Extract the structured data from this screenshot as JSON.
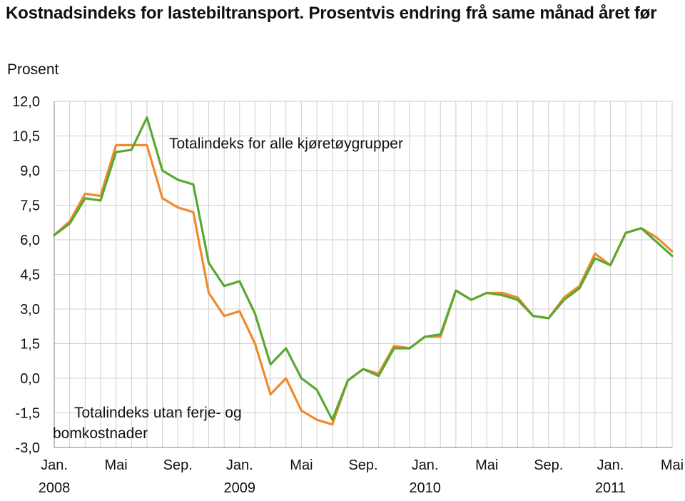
{
  "title": "Kostnadsindeks for lastebiltransport. Prosentvis endring frå same månad året før",
  "chart_data": {
    "type": "line",
    "title": "Kostnadsindeks for lastebiltransport. Prosentvis endring frå same månad året før",
    "ylabel": "Prosent",
    "xlabel": "",
    "ylim": [
      -3.0,
      12.0
    ],
    "yticks": [
      "12,0",
      "10,5",
      "9,0",
      "7,5",
      "6,0",
      "4,5",
      "3,0",
      "1,5",
      "0,0",
      "-1,5",
      "-3,0"
    ],
    "xtick_labels": [
      {
        "month": 0,
        "line1": "Jan.",
        "line2": "2008"
      },
      {
        "month": 4,
        "line1": "Mai",
        "line2": ""
      },
      {
        "month": 8,
        "line1": "Sep.",
        "line2": ""
      },
      {
        "month": 12,
        "line1": "Jan.",
        "line2": "2009"
      },
      {
        "month": 16,
        "line1": "Mai",
        "line2": ""
      },
      {
        "month": 20,
        "line1": "Sep.",
        "line2": ""
      },
      {
        "month": 24,
        "line1": "Jan.",
        "line2": "2010"
      },
      {
        "month": 28,
        "line1": "Mai",
        "line2": ""
      },
      {
        "month": 32,
        "line1": "Sep.",
        "line2": ""
      },
      {
        "month": 36,
        "line1": "Jan.",
        "line2": "2011"
      },
      {
        "month": 40,
        "line1": "Mai",
        "line2": ""
      }
    ],
    "grid": true,
    "series": [
      {
        "name": "Totalindeks utan ferje- og bomkostnader",
        "color": "#f08a2e",
        "values": [
          6.2,
          6.8,
          8.0,
          7.9,
          10.1,
          10.1,
          10.1,
          7.8,
          7.4,
          7.2,
          3.7,
          2.7,
          2.9,
          1.5,
          -0.7,
          0.0,
          -1.4,
          -1.8,
          -2.0,
          -0.1,
          0.4,
          0.2,
          1.4,
          1.3,
          1.8,
          1.8,
          3.8,
          3.4,
          3.7,
          3.7,
          3.5,
          2.7,
          2.6,
          3.5,
          4.0,
          5.4,
          4.9,
          6.3,
          6.5,
          6.1,
          5.5
        ]
      },
      {
        "name": "Totalindeks for alle kjøretøygrupper",
        "color": "#5aa832",
        "values": [
          6.2,
          6.7,
          7.8,
          7.7,
          9.8,
          9.9,
          11.3,
          9.0,
          8.6,
          8.4,
          5.0,
          4.0,
          4.2,
          2.8,
          0.6,
          1.3,
          0.0,
          -0.5,
          -1.8,
          -0.1,
          0.4,
          0.1,
          1.3,
          1.3,
          1.8,
          1.9,
          3.8,
          3.4,
          3.7,
          3.6,
          3.4,
          2.7,
          2.6,
          3.4,
          3.9,
          5.2,
          4.9,
          6.3,
          6.5,
          5.9,
          5.3
        ]
      }
    ]
  },
  "annotations": {
    "green_label": "Totalindeks for alle kjøretøygrupper",
    "orange_label_line1": "Totalindeks utan ferje- og",
    "orange_label_line2": "bomkostnader"
  }
}
